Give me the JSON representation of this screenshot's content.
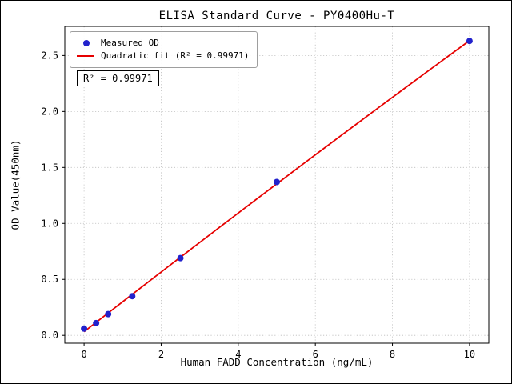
{
  "chart_data": {
    "type": "scatter",
    "title": "ELISA Standard Curve - PY0400Hu-T",
    "xlabel": "Human FADD Concentration (ng/mL)",
    "ylabel": "OD Value(450nm)",
    "xlim": [
      -0.5,
      10.5
    ],
    "ylim": [
      -0.07,
      2.76
    ],
    "grid": true,
    "grid_color": "#bdbdbd",
    "x_ticks": {
      "values": [
        0,
        2,
        4,
        6,
        8,
        10
      ],
      "labels": [
        "0",
        "2",
        "4",
        "6",
        "8",
        "10"
      ]
    },
    "y_ticks": {
      "values": [
        0,
        0.5,
        1.0,
        1.5,
        2.0,
        2.5
      ],
      "labels": [
        "0.0",
        "0.5",
        "1.0",
        "1.5",
        "2.0",
        "2.5"
      ]
    },
    "legend": {
      "position": "upper-left",
      "entries": [
        {
          "label": "Measured OD",
          "marker": "dot",
          "color": "#2222cc"
        },
        {
          "label": "Quadratic fit (R² = 0.99971)",
          "marker": "line",
          "color": "#e60000"
        }
      ]
    },
    "annotation": "R² = 0.99971",
    "series": [
      {
        "name": "Measured OD",
        "type": "scatter",
        "color": "#2222cc",
        "x": [
          0,
          0.3125,
          0.625,
          1.25,
          2.5,
          5,
          10
        ],
        "y": [
          0.06,
          0.11,
          0.19,
          0.35,
          0.69,
          1.37,
          2.63
        ]
      },
      {
        "name": "Quadratic fit",
        "type": "line",
        "fit": "quadratic",
        "color": "#e60000",
        "r_squared": 0.99971
      }
    ]
  }
}
